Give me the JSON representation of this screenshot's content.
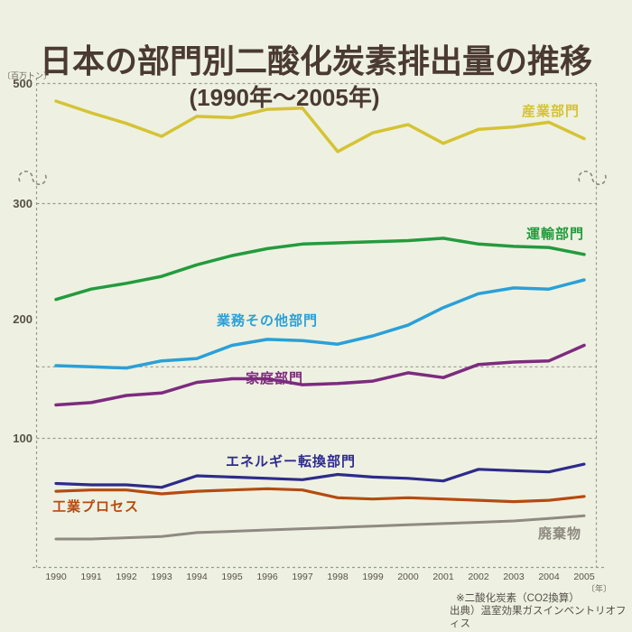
{
  "title": "日本の部門別二酸化炭素排出量の推移",
  "subtitle": "(1990年～2005年)",
  "unit_label": "〔百万トン〕",
  "year_unit_label": "〔年〕",
  "notes": [
    "※二酸化炭素（CO2換算）",
    "出典）温室効果ガスインベントリオフィス"
  ],
  "colors": {
    "background": "#eef1e1",
    "title_text": "#4a3a31",
    "axis_grid": "#9b978e",
    "tick_text": "#575047"
  },
  "chart_data": {
    "type": "line",
    "title": "日本の部門別二酸化炭素排出量の推移（1990年～2005年）",
    "ylabel": "百万トン（CO2換算）",
    "xlabel": "年",
    "x": [
      1990,
      1991,
      1992,
      1993,
      1994,
      1995,
      1996,
      1997,
      1998,
      1999,
      2000,
      2001,
      2002,
      2003,
      2004,
      2005
    ],
    "y_ticks": [
      500,
      300,
      200,
      100
    ],
    "y_axis_break_between": [
      300,
      500
    ],
    "reference_gridline": 160,
    "grid": "dashed",
    "legend_position": "inline-labels",
    "series": [
      {
        "id": "industry",
        "name": "産業部門",
        "color": "#d5c334",
        "values": [
          485,
          475,
          466,
          455,
          472,
          471,
          478,
          479,
          442,
          458,
          465,
          449,
          461,
          463,
          467,
          453
        ]
      },
      {
        "id": "transport",
        "name": "運輸部門",
        "color": "#239b3e",
        "values": [
          217,
          226,
          231,
          237,
          247,
          255,
          261,
          265,
          266,
          267,
          268,
          270,
          265,
          263,
          262,
          256
        ]
      },
      {
        "id": "commercial-other",
        "name": "業務その他部門",
        "color": "#2aa0d8",
        "values": [
          161,
          160,
          159,
          165,
          167,
          178,
          183,
          182,
          179,
          186,
          195,
          210,
          222,
          227,
          226,
          234
        ]
      },
      {
        "id": "household",
        "name": "家庭部門",
        "color": "#7d2b7f",
        "values": [
          128,
          130,
          136,
          138,
          147,
          150,
          150,
          145,
          146,
          148,
          155,
          151,
          162,
          164,
          165,
          178
        ]
      },
      {
        "id": "energy-conversion",
        "name": "エネルギー転換部門",
        "color": "#2e2b8c",
        "values": [
          65,
          64,
          64,
          62,
          71,
          70,
          69,
          68,
          72,
          70,
          69,
          67,
          76,
          75,
          74,
          80
        ]
      },
      {
        "id": "industrial-process",
        "name": "工業プロセス",
        "color": "#b54b10",
        "values": [
          59,
          60,
          60,
          57,
          59,
          60,
          61,
          60,
          54,
          53,
          54,
          53,
          52,
          51,
          52,
          55
        ]
      },
      {
        "id": "waste",
        "name": "廃棄物",
        "color": "#8f8a82",
        "values": [
          22,
          22,
          23,
          24,
          27,
          28,
          29,
          30,
          31,
          32,
          33,
          34,
          35,
          36,
          38,
          40
        ]
      }
    ]
  }
}
